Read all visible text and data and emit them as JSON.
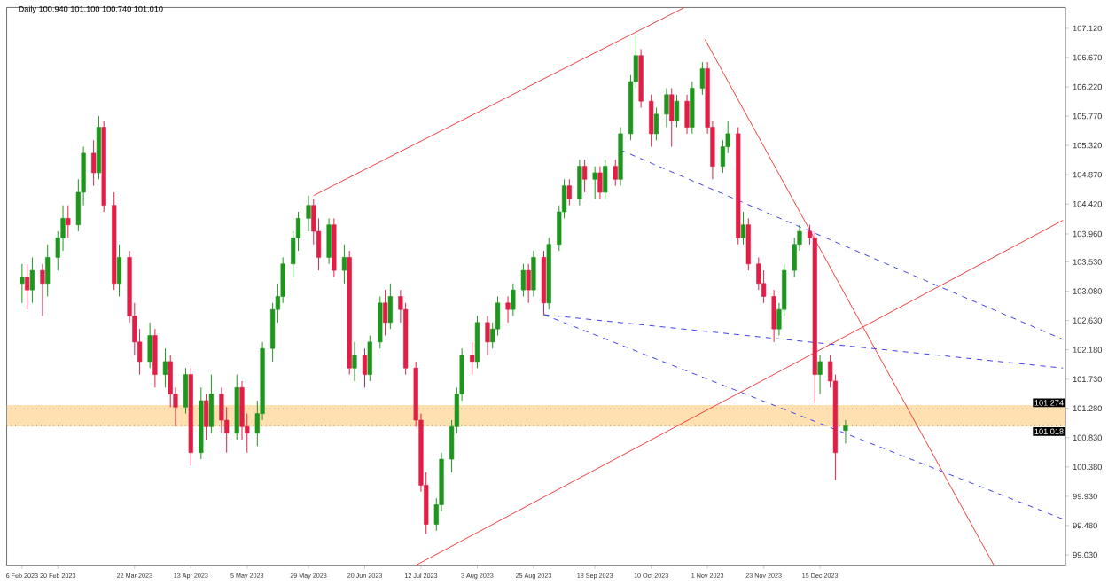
{
  "chart_data": {
    "type": "candlestick",
    "title": "Daily  100.940 101.100 100.740 101.010",
    "x": [
      "2023-02-06",
      "2023-02-08",
      "2023-02-10",
      "2023-02-14",
      "2023-02-16",
      "2023-02-20",
      "2023-02-22",
      "2023-02-24",
      "2023-02-28",
      "2023-03-02",
      "2023-03-06",
      "2023-03-08",
      "2023-03-10",
      "2023-03-14",
      "2023-03-16",
      "2023-03-20",
      "2023-03-22",
      "2023-03-24",
      "2023-03-28",
      "2023-03-30",
      "2023-04-03",
      "2023-04-05",
      "2023-04-07",
      "2023-04-11",
      "2023-04-13",
      "2023-04-17",
      "2023-04-19",
      "2023-04-21",
      "2023-04-25",
      "2023-04-27",
      "2023-05-01",
      "2023-05-03",
      "2023-05-05",
      "2023-05-09",
      "2023-05-11",
      "2023-05-15",
      "2023-05-17",
      "2023-05-19",
      "2023-05-23",
      "2023-05-25",
      "2023-05-29",
      "2023-05-31",
      "2023-06-02",
      "2023-06-06",
      "2023-06-08",
      "2023-06-12",
      "2023-06-14",
      "2023-06-16",
      "2023-06-20",
      "2023-06-22",
      "2023-06-26",
      "2023-06-28",
      "2023-06-30",
      "2023-07-04",
      "2023-07-06",
      "2023-07-10",
      "2023-07-12",
      "2023-07-14",
      "2023-07-18",
      "2023-07-20",
      "2023-07-24",
      "2023-07-26",
      "2023-07-28",
      "2023-08-01",
      "2023-08-03",
      "2023-08-07",
      "2023-08-09",
      "2023-08-11",
      "2023-08-15",
      "2023-08-17",
      "2023-08-21",
      "2023-08-23",
      "2023-08-25",
      "2023-08-29",
      "2023-08-31",
      "2023-09-04",
      "2023-09-06",
      "2023-09-08",
      "2023-09-12",
      "2023-09-14",
      "2023-09-18",
      "2023-09-20",
      "2023-09-22",
      "2023-09-26",
      "2023-09-28",
      "2023-10-02",
      "2023-10-04",
      "2023-10-06",
      "2023-10-10",
      "2023-10-12",
      "2023-10-16",
      "2023-10-18",
      "2023-10-20",
      "2023-10-24",
      "2023-10-26",
      "2023-10-30",
      "2023-11-01",
      "2023-11-03",
      "2023-11-07",
      "2023-11-09",
      "2023-11-13",
      "2023-11-15",
      "2023-11-17",
      "2023-11-21",
      "2023-11-23",
      "2023-11-27",
      "2023-11-29",
      "2023-12-01",
      "2023-12-05",
      "2023-12-07",
      "2023-12-11",
      "2023-12-13",
      "2023-12-15",
      "2023-12-19",
      "2023-12-21",
      "2023-12-25"
    ],
    "ohlc": [
      [
        103.2,
        103.5,
        102.9,
        103.3
      ],
      [
        103.3,
        103.5,
        102.8,
        103.1
      ],
      [
        103.1,
        103.6,
        102.9,
        103.4
      ],
      [
        103.4,
        103.5,
        102.7,
        103.2
      ],
      [
        103.2,
        103.8,
        103.0,
        103.6
      ],
      [
        103.6,
        104.0,
        103.4,
        103.9
      ],
      [
        103.9,
        104.4,
        103.7,
        104.2
      ],
      [
        104.2,
        104.4,
        103.9,
        104.1
      ],
      [
        104.1,
        104.8,
        104.0,
        104.6
      ],
      [
        104.6,
        105.3,
        104.4,
        105.2
      ],
      [
        105.2,
        105.4,
        104.7,
        104.9
      ],
      [
        104.9,
        105.77,
        104.8,
        105.6
      ],
      [
        105.6,
        105.7,
        104.3,
        104.4
      ],
      [
        104.4,
        104.6,
        103.1,
        103.2
      ],
      [
        103.2,
        103.8,
        103.0,
        103.6
      ],
      [
        103.6,
        103.7,
        102.6,
        102.7
      ],
      [
        102.7,
        102.9,
        102.1,
        102.3
      ],
      [
        102.3,
        102.5,
        101.8,
        102.0
      ],
      [
        102.0,
        102.6,
        101.9,
        102.4
      ],
      [
        102.4,
        102.5,
        101.6,
        101.8
      ],
      [
        101.8,
        102.2,
        101.6,
        102.0
      ],
      [
        102.0,
        102.1,
        101.3,
        101.5
      ],
      [
        101.5,
        101.6,
        101.0,
        101.3
      ],
      [
        101.3,
        101.9,
        101.2,
        101.8
      ],
      [
        101.8,
        101.9,
        100.4,
        100.6
      ],
      [
        100.6,
        101.6,
        100.5,
        101.4
      ],
      [
        101.4,
        101.5,
        100.8,
        101.0
      ],
      [
        101.0,
        101.8,
        100.9,
        101.5
      ],
      [
        101.5,
        101.6,
        100.9,
        101.1
      ],
      [
        101.1,
        101.3,
        100.6,
        100.9
      ],
      [
        100.9,
        101.8,
        100.8,
        101.6
      ],
      [
        101.6,
        101.7,
        100.8,
        101.0
      ],
      [
        101.0,
        101.2,
        100.6,
        100.9
      ],
      [
        100.9,
        101.4,
        100.7,
        101.2
      ],
      [
        101.2,
        102.3,
        101.1,
        102.2
      ],
      [
        102.2,
        102.9,
        102.0,
        102.8
      ],
      [
        102.8,
        103.2,
        102.6,
        103.0
      ],
      [
        103.0,
        103.6,
        102.9,
        103.5
      ],
      [
        103.5,
        104.0,
        103.3,
        103.9
      ],
      [
        103.9,
        104.3,
        103.7,
        104.2
      ],
      [
        104.2,
        104.55,
        104.0,
        104.4
      ],
      [
        104.4,
        104.5,
        103.8,
        104.0
      ],
      [
        104.0,
        104.2,
        103.4,
        103.6
      ],
      [
        103.6,
        104.2,
        103.5,
        104.1
      ],
      [
        104.1,
        104.2,
        103.3,
        103.4
      ],
      [
        103.4,
        103.8,
        103.2,
        103.6
      ],
      [
        103.6,
        103.7,
        101.8,
        101.9
      ],
      [
        101.9,
        102.3,
        101.7,
        102.1
      ],
      [
        102.1,
        102.2,
        101.6,
        101.8
      ],
      [
        101.8,
        102.4,
        101.7,
        102.3
      ],
      [
        102.3,
        103.0,
        102.2,
        102.9
      ],
      [
        102.9,
        103.1,
        102.4,
        102.6
      ],
      [
        102.6,
        103.2,
        102.5,
        103.0
      ],
      [
        103.0,
        103.1,
        102.6,
        102.8
      ],
      [
        102.8,
        102.9,
        101.8,
        101.9
      ],
      [
        101.9,
        102.0,
        101.0,
        101.1
      ],
      [
        101.1,
        101.2,
        100.0,
        100.1
      ],
      [
        100.1,
        100.3,
        99.35,
        99.5
      ],
      [
        99.5,
        99.9,
        99.4,
        99.8
      ],
      [
        99.8,
        100.6,
        99.7,
        100.5
      ],
      [
        100.5,
        101.1,
        100.3,
        101.0
      ],
      [
        101.0,
        101.6,
        100.9,
        101.5
      ],
      [
        101.5,
        102.2,
        101.4,
        102.1
      ],
      [
        102.1,
        102.3,
        101.8,
        102.0
      ],
      [
        102.0,
        102.7,
        101.9,
        102.6
      ],
      [
        102.6,
        102.7,
        102.1,
        102.3
      ],
      [
        102.3,
        102.6,
        102.2,
        102.5
      ],
      [
        102.5,
        103.0,
        102.4,
        102.9
      ],
      [
        102.9,
        103.0,
        102.6,
        102.8
      ],
      [
        102.8,
        103.2,
        102.7,
        103.1
      ],
      [
        103.1,
        103.5,
        103.0,
        103.4
      ],
      [
        103.4,
        103.5,
        102.9,
        103.1
      ],
      [
        103.1,
        103.7,
        103.0,
        103.6
      ],
      [
        103.6,
        103.7,
        102.72,
        102.9
      ],
      [
        102.9,
        103.9,
        102.8,
        103.8
      ],
      [
        103.8,
        104.4,
        103.7,
        104.3
      ],
      [
        104.3,
        104.8,
        104.2,
        104.7
      ],
      [
        104.7,
        104.8,
        104.4,
        104.5
      ],
      [
        104.5,
        105.1,
        104.4,
        105.0
      ],
      [
        105.0,
        105.1,
        104.6,
        104.8
      ],
      [
        104.8,
        105.0,
        104.5,
        104.9
      ],
      [
        104.9,
        105.0,
        104.5,
        104.6
      ],
      [
        104.6,
        105.1,
        104.5,
        105.0
      ],
      [
        105.0,
        105.1,
        104.7,
        104.8
      ],
      [
        104.8,
        105.6,
        104.7,
        105.5
      ],
      [
        105.5,
        106.4,
        105.4,
        106.3
      ],
      [
        106.3,
        107.02,
        106.2,
        106.7
      ],
      [
        106.7,
        106.8,
        105.9,
        106.0
      ],
      [
        106.0,
        106.1,
        105.3,
        105.5
      ],
      [
        105.5,
        105.9,
        105.4,
        105.8
      ],
      [
        105.8,
        106.2,
        105.6,
        106.1
      ],
      [
        106.1,
        106.2,
        105.3,
        105.7
      ],
      [
        105.7,
        106.1,
        105.6,
        106.0
      ],
      [
        106.0,
        106.1,
        105.5,
        105.6
      ],
      [
        105.6,
        106.3,
        105.5,
        106.2
      ],
      [
        106.2,
        106.6,
        106.1,
        106.5
      ],
      [
        106.5,
        106.6,
        105.5,
        105.6
      ],
      [
        105.6,
        105.7,
        104.8,
        105.0
      ],
      [
        105.0,
        105.4,
        104.9,
        105.3
      ],
      [
        105.3,
        105.7,
        105.2,
        105.5
      ],
      [
        105.5,
        105.6,
        103.8,
        103.9
      ],
      [
        103.9,
        104.3,
        103.8,
        104.1
      ],
      [
        104.1,
        104.2,
        103.4,
        103.5
      ],
      [
        103.5,
        103.6,
        103.1,
        103.2
      ],
      [
        103.2,
        103.4,
        102.9,
        103.0
      ],
      [
        103.0,
        103.1,
        102.3,
        102.5
      ],
      [
        102.5,
        102.9,
        102.4,
        102.8
      ],
      [
        102.8,
        103.5,
        102.7,
        103.4
      ],
      [
        103.4,
        103.9,
        103.3,
        103.8
      ],
      [
        103.8,
        104.1,
        103.7,
        104.0
      ],
      [
        104.0,
        104.1,
        103.8,
        103.9
      ],
      [
        103.9,
        104.0,
        101.36,
        101.8
      ],
      [
        101.8,
        102.1,
        101.5,
        102.0
      ],
      [
        102.0,
        102.1,
        101.6,
        101.7
      ],
      [
        101.7,
        101.8,
        100.18,
        100.6
      ],
      [
        100.94,
        101.1,
        100.74,
        101.01
      ]
    ],
    "series": [
      {
        "type": "line",
        "color": "#f04040",
        "line_style": "solid",
        "x": [
          "2023-05-31",
          "2023-10-23"
        ],
        "values": [
          104.55,
          107.44
        ]
      },
      {
        "type": "line",
        "color": "#f04040",
        "line_style": "solid",
        "x": [
          "2023-07-10",
          "2024-03-19"
        ],
        "values": [
          98.87,
          104.17
        ]
      },
      {
        "type": "line",
        "color": "#f04040",
        "line_style": "solid",
        "x": [
          "2023-10-31",
          "2024-02-21"
        ],
        "values": [
          106.95,
          98.87
        ]
      },
      {
        "type": "line",
        "color": "#4040f0",
        "line_style": "dashed",
        "x": [
          "2023-09-28",
          "2024-03-19"
        ],
        "values": [
          105.25,
          102.34
        ]
      },
      {
        "type": "line",
        "color": "#4040f0",
        "line_style": "dashed",
        "x": [
          "2023-08-29",
          "2024-03-19"
        ],
        "values": [
          102.72,
          101.9
        ]
      },
      {
        "type": "line",
        "color": "#4040f0",
        "line_style": "dashed",
        "x": [
          "2023-08-29",
          "2024-03-19"
        ],
        "values": [
          102.72,
          99.58
        ]
      }
    ],
    "xlim": [
      "2023-01-31",
      "2024-03-20"
    ],
    "ylim": [
      98.87,
      107.44
    ],
    "xticks": [
      {
        "value": "2023-02-06",
        "label": "6 Feb 2023"
      },
      {
        "value": "2023-02-20",
        "label": "20 Feb 2023"
      },
      {
        "value": "2023-03-22",
        "label": "22 Mar 2023"
      },
      {
        "value": "2023-04-13",
        "label": "13 Apr 2023"
      },
      {
        "value": "2023-05-05",
        "label": "5 May 2023"
      },
      {
        "value": "2023-05-29",
        "label": "29 May 2023"
      },
      {
        "value": "2023-06-20",
        "label": "20 Jun 2023"
      },
      {
        "value": "2023-07-12",
        "label": "12 Jul 2023"
      },
      {
        "value": "2023-08-03",
        "label": "3 Aug 2023"
      },
      {
        "value": "2023-08-25",
        "label": "25 Aug 2023"
      },
      {
        "value": "2023-09-18",
        "label": "18 Sep 2023"
      },
      {
        "value": "2023-10-10",
        "label": "10 Oct 2023"
      },
      {
        "value": "2023-11-01",
        "label": "1 Nov 2023"
      },
      {
        "value": "2023-11-23",
        "label": "23 Nov 2023"
      },
      {
        "value": "2023-12-15",
        "label": "15 Dec 2023"
      }
    ],
    "yticks": [
      {
        "value": 99.03,
        "label": "99.030"
      },
      {
        "value": 99.48,
        "label": "99.480"
      },
      {
        "value": 99.93,
        "label": "99.930"
      },
      {
        "value": 100.38,
        "label": "100.380"
      },
      {
        "value": 100.83,
        "label": "100.830"
      },
      {
        "value": 101.28,
        "label": "101.280"
      },
      {
        "value": 101.73,
        "label": "101.730"
      },
      {
        "value": 102.18,
        "label": "102.180"
      },
      {
        "value": 102.63,
        "label": "102.630"
      },
      {
        "value": 103.08,
        "label": "103.080"
      },
      {
        "value": 103.53,
        "label": "103.530"
      },
      {
        "value": 103.96,
        "label": "103.960"
      },
      {
        "value": 104.42,
        "label": "104.420"
      },
      {
        "value": 104.87,
        "label": "104.870"
      },
      {
        "value": 105.32,
        "label": "105.320"
      },
      {
        "value": 105.77,
        "label": "105.770"
      },
      {
        "value": 106.22,
        "label": "106.220"
      },
      {
        "value": 106.67,
        "label": "106.670"
      },
      {
        "value": 107.12,
        "label": "107.120"
      }
    ],
    "bands": [
      {
        "axis": "y",
        "from": 101.0,
        "to": 101.33,
        "color": "#ffe0b0"
      }
    ],
    "ref_lines": [
      {
        "axis": "y",
        "value": 101.274,
        "label": "101.274",
        "color": "#808080",
        "line_style": "dotted"
      },
      {
        "axis": "y",
        "value": 101.018,
        "label": "101.018",
        "color": "#404040",
        "line_style": "dotted"
      }
    ],
    "grid": false
  }
}
